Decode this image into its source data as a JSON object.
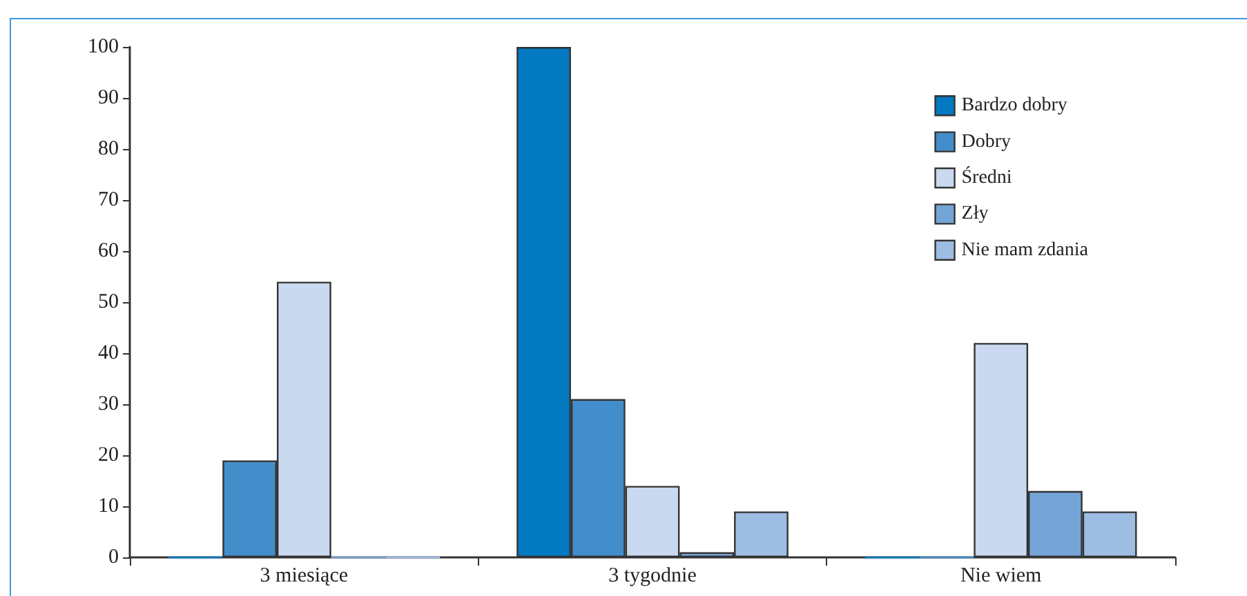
{
  "chart_data": {
    "type": "bar",
    "categories": [
      "3 miesiące",
      "3 tygodnie",
      "Nie wiem"
    ],
    "series": [
      {
        "name": "Bardzo dobry",
        "color": "#0279c1",
        "values": [
          0,
          100,
          0
        ]
      },
      {
        "name": "Dobry",
        "color": "#448dcb",
        "values": [
          19,
          31,
          0
        ]
      },
      {
        "name": "Średni",
        "color": "#cad9ef",
        "values": [
          54,
          14,
          42
        ]
      },
      {
        "name": "Zły",
        "color": "#75a5d7",
        "values": [
          0,
          1,
          13
        ]
      },
      {
        "name": "Nie mam zdania",
        "color": "#9dbde3",
        "values": [
          0,
          9,
          9
        ]
      }
    ],
    "ylim": [
      0,
      100
    ],
    "yticks": [
      0,
      10,
      20,
      30,
      40,
      50,
      60,
      70,
      80,
      90,
      100
    ],
    "grid": false,
    "legend": "top right"
  }
}
